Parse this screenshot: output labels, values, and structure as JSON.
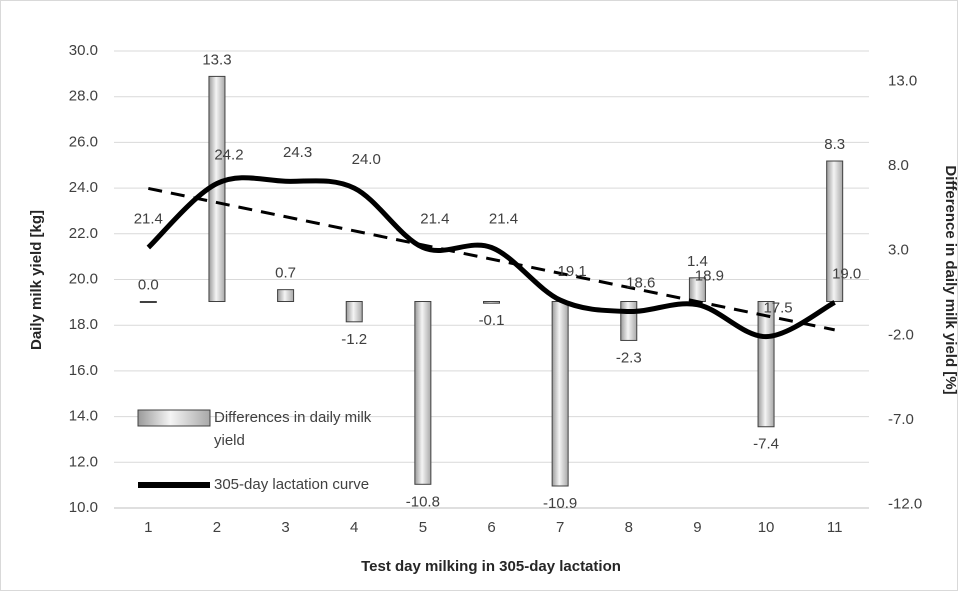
{
  "chart_data": {
    "type": "combo",
    "x_label": "Test day milking in 305-day lactation",
    "y_label": "Daily milk yield [kg]",
    "y2_label": "Difference in daily milk yield [%]",
    "categories": [
      "1",
      "2",
      "3",
      "4",
      "5",
      "6",
      "7",
      "8",
      "9",
      "10",
      "11"
    ],
    "ylim": [
      10,
      30
    ],
    "yticks": [
      {
        "value": 10,
        "label": "10.0"
      },
      {
        "value": 12,
        "label": "12.0"
      },
      {
        "value": 14,
        "label": "14.0"
      },
      {
        "value": 16,
        "label": "16.0"
      },
      {
        "value": 18,
        "label": "18.0"
      },
      {
        "value": 20,
        "label": "20.0"
      },
      {
        "value": 22,
        "label": "22.0"
      },
      {
        "value": 24,
        "label": "24.0"
      },
      {
        "value": 26,
        "label": "26.0"
      },
      {
        "value": 28,
        "label": "28.0"
      },
      {
        "value": 30,
        "label": "30.0"
      }
    ],
    "y2lim": [
      -12.2,
      14.8
    ],
    "y2ticks": [
      {
        "value": -12,
        "label": "-12.0"
      },
      {
        "value": -7,
        "label": "-7.0"
      },
      {
        "value": -2,
        "label": "-2.0"
      },
      {
        "value": 3,
        "label": "3.0"
      },
      {
        "value": 8,
        "label": "8.0"
      },
      {
        "value": 13,
        "label": "13.0"
      }
    ],
    "grid": true,
    "legend": "lower left",
    "series": [
      {
        "name": "Differences in daily milk yield",
        "type": "bar",
        "axis": "y2",
        "color": "#d9d9d9",
        "values": [
          0,
          13.3,
          0.7,
          -1.2,
          -10.8,
          -0.1,
          -10.9,
          -2.3,
          1.4,
          -7.4,
          8.3
        ],
        "value_labels": [
          "0.0",
          "13.3",
          "0.7",
          "-1.2",
          "-10.8",
          "-0.1",
          "-10.9",
          "-2.3",
          "1.4",
          "-7.4",
          "8.3"
        ]
      },
      {
        "name": "305-day lactation curve",
        "type": "line",
        "smooth": true,
        "trendline": "linear",
        "color": "#000000",
        "values": [
          21.4,
          24.2,
          24.3,
          24.0,
          21.4,
          21.4,
          19.1,
          18.6,
          18.9,
          17.5,
          19.0
        ],
        "value_labels": [
          "21.4",
          "24.2",
          "24.3",
          "24.0",
          "21.4",
          "21.4",
          "19.1",
          "18.6",
          "18.9",
          "17.5",
          "19.0"
        ]
      }
    ]
  }
}
